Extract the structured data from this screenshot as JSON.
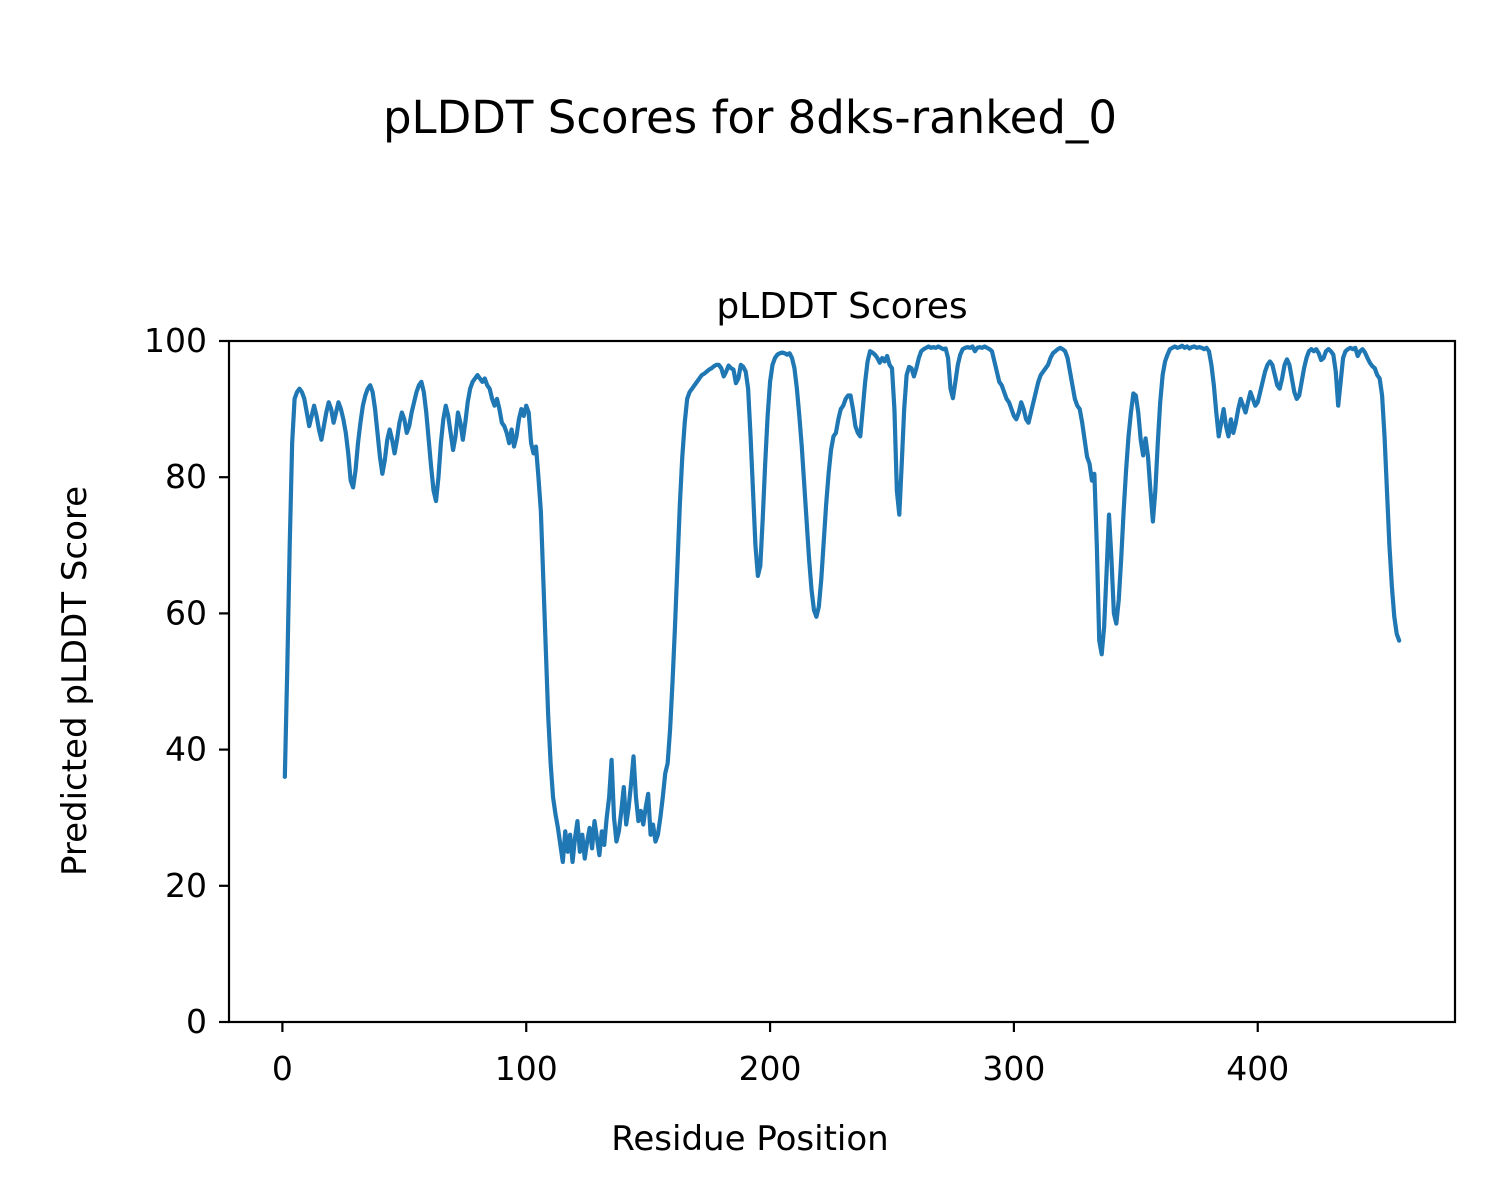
{
  "figure": {
    "suptitle": "pLDDT Scores for 8dks-ranked_0",
    "axes_title": "pLDDT Scores",
    "xlabel": "Residue Position",
    "ylabel": "Predicted pLDDT Score",
    "background_color": "#ffffff",
    "text_color": "#000000"
  },
  "chart_data": {
    "type": "line",
    "title": "pLDDT Scores",
    "suptitle": "pLDDT Scores for 8dks-ranked_0",
    "xlabel": "Residue Position",
    "ylabel": "Predicted pLDDT Score",
    "line_color": "#1f77b4",
    "grid": false,
    "legend": "none",
    "xlim": [
      -21.9,
      480.9
    ],
    "ylim": [
      0,
      100
    ],
    "xticks": [
      0,
      100,
      200,
      300,
      400
    ],
    "yticks": [
      0,
      20,
      40,
      60,
      80,
      100
    ],
    "x_start": 1,
    "x_step": 1,
    "n_points": 458,
    "values": [
      36,
      52,
      70,
      85,
      91.5,
      92.5,
      93,
      92.5,
      91.5,
      89.5,
      87.5,
      89,
      90.5,
      89,
      87,
      85.5,
      87.5,
      89.5,
      91,
      90,
      88,
      89.5,
      91,
      90,
      88.5,
      86.5,
      83.5,
      79.5,
      78.5,
      81,
      85,
      88,
      90.5,
      92,
      93,
      93.5,
      92.5,
      90,
      86.5,
      83,
      80.5,
      82.5,
      85.5,
      87,
      85.5,
      83.5,
      85.5,
      88,
      89.5,
      88.5,
      86.5,
      87.5,
      89.5,
      91,
      92.5,
      93.5,
      94,
      92.5,
      89.5,
      85.5,
      81.5,
      78,
      76.5,
      80,
      85,
      88.5,
      90.5,
      89,
      86.5,
      84,
      86,
      89.5,
      88,
      85.5,
      88,
      91,
      93,
      94,
      94.5,
      95,
      94.5,
      94,
      94.5,
      93.5,
      93,
      91.5,
      90.5,
      91.5,
      90,
      88,
      87.5,
      86.5,
      85,
      87,
      84.5,
      86,
      88.5,
      90,
      89,
      90.5,
      89.5,
      85,
      83.5,
      84.5,
      80,
      75,
      65,
      55,
      45,
      38,
      33,
      30.5,
      28.5,
      26,
      23.5,
      28,
      25,
      27.5,
      23.5,
      27,
      29.5,
      25,
      27.5,
      24,
      26.5,
      28.5,
      25.5,
      29.5,
      27,
      24.5,
      28,
      26,
      30,
      33,
      38.5,
      30,
      26.5,
      28,
      31,
      34.5,
      29,
      31.5,
      35,
      39,
      33,
      29.5,
      31,
      29,
      31.5,
      33.5,
      27.5,
      29,
      26.5,
      27.5,
      30,
      33,
      36.5,
      38,
      43,
      50,
      58,
      67,
      76,
      83,
      88,
      91.5,
      92.5,
      93,
      93.5,
      94,
      94.5,
      95,
      95.2,
      95.5,
      95.8,
      96,
      96.3,
      96.5,
      96.5,
      96,
      94.8,
      95.5,
      96.4,
      96,
      95.8,
      93.8,
      94.5,
      96.5,
      96.2,
      95.5,
      93,
      86,
      78,
      70,
      65.5,
      67,
      74,
      82,
      89,
      94,
      96.5,
      97.5,
      98,
      98.2,
      98.3,
      98.2,
      98,
      98.2,
      97.5,
      96,
      93,
      89,
      84.5,
      79,
      73.5,
      68,
      63.5,
      60.5,
      59.5,
      61,
      65,
      70.5,
      76,
      80.5,
      84,
      86,
      86.5,
      88.5,
      90,
      90.5,
      91.5,
      92,
      92,
      90,
      87.5,
      86.5,
      86,
      90,
      94,
      97,
      98.5,
      98.3,
      98,
      97.5,
      96.8,
      97.5,
      97,
      97.8,
      96.5,
      96,
      90,
      78,
      74.5,
      82,
      90,
      95,
      96.2,
      96,
      94.8,
      96,
      97.5,
      98.5,
      98.8,
      99,
      99.2,
      99,
      99.1,
      99,
      99.2,
      99,
      98.8,
      98.9,
      97.5,
      93,
      91.6,
      94,
      96.5,
      98,
      98.8,
      99,
      99.1,
      99,
      99.2,
      98.5,
      99,
      99.1,
      99,
      99.2,
      99,
      98.8,
      98.5,
      97,
      95.5,
      94,
      93.5,
      92.5,
      91.5,
      91,
      90,
      89,
      88.5,
      89.5,
      91,
      90,
      88.5,
      88,
      89.5,
      91,
      92.5,
      94,
      95,
      95.5,
      96,
      96.5,
      97.5,
      98.2,
      98.5,
      98.8,
      99,
      98.8,
      98.5,
      97.5,
      95.5,
      93.5,
      91.5,
      90.5,
      90,
      88,
      85.5,
      83,
      82,
      79.5,
      80.5,
      70,
      56,
      54,
      58,
      66,
      74.5,
      68,
      60,
      58.5,
      62,
      68,
      75,
      81,
      86,
      89.5,
      92.3,
      92,
      89.5,
      85.5,
      83.2,
      85.7,
      83,
      78,
      73.5,
      78,
      85,
      91,
      95,
      97,
      98,
      98.8,
      99,
      99.2,
      99,
      99.1,
      99.3,
      99,
      99.2,
      98.9,
      99.1,
      99.2,
      99,
      99.1,
      99,
      98.8,
      99,
      98.5,
      96.5,
      93.5,
      89.5,
      86,
      88,
      90,
      87.5,
      86,
      88.5,
      86.5,
      88,
      90,
      91.5,
      90.5,
      89.5,
      91,
      92.5,
      91.5,
      90.5,
      91,
      92.5,
      94,
      95.5,
      96.5,
      97,
      96.5,
      95,
      93.5,
      93,
      94.5,
      96.5,
      97.3,
      96.5,
      94.5,
      92.5,
      91.5,
      92,
      94,
      96,
      97.5,
      98.5,
      98.8,
      98.5,
      98.8,
      98.2,
      97.2,
      97.5,
      98.5,
      98.8,
      98.5,
      98,
      95.5,
      90.5,
      94,
      97.5,
      98.5,
      98.8,
      99,
      98.8,
      99,
      97.8,
      98.5,
      98.8,
      98.3,
      97.5,
      96.8,
      96.3,
      96,
      95,
      94.5,
      92,
      86,
      78,
      70,
      64,
      59.5,
      57,
      56
    ]
  }
}
